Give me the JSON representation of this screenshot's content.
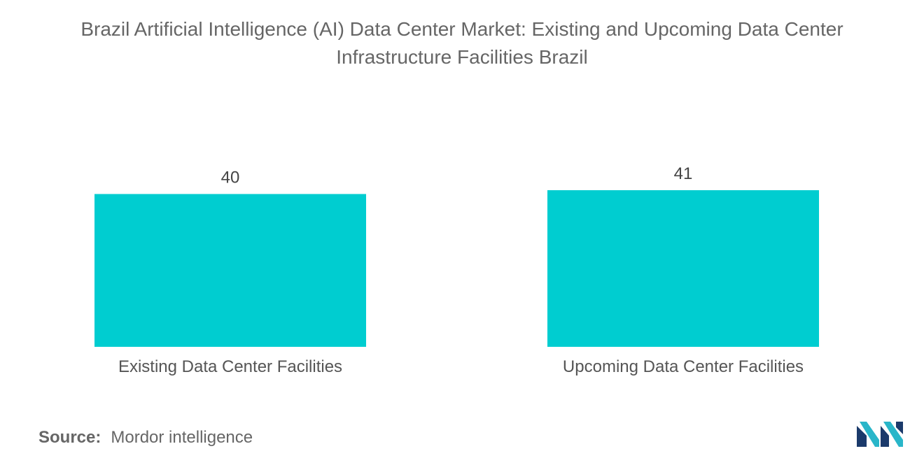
{
  "title_line1": "Brazil Artificial Intelligence (AI) Data Center Market: Existing and Upcoming Data Center",
  "title_line2": "Infrastructure Facilities Brazil",
  "source": {
    "label": "Source:",
    "value": "Mordor intelligence"
  },
  "logo": {
    "name": "mordor-intelligence-logo",
    "colors": [
      "#1b3a6b",
      "#29b6c9"
    ]
  },
  "colors": {
    "bar": "#00cdd0"
  },
  "chart_data": {
    "type": "bar",
    "title": "Brazil Artificial Intelligence (AI) Data Center Market: Existing and Upcoming Data Center Infrastructure Facilities Brazil",
    "categories": [
      "Existing Data Center Facilities",
      "Upcoming Data Center Facilities"
    ],
    "values": [
      40,
      41
    ],
    "data_labels": [
      "40",
      "41"
    ],
    "xlabel": "",
    "ylabel": "",
    "ylim": [
      0,
      41
    ],
    "grid": false,
    "y_axis_visible": false,
    "legend": "none"
  }
}
